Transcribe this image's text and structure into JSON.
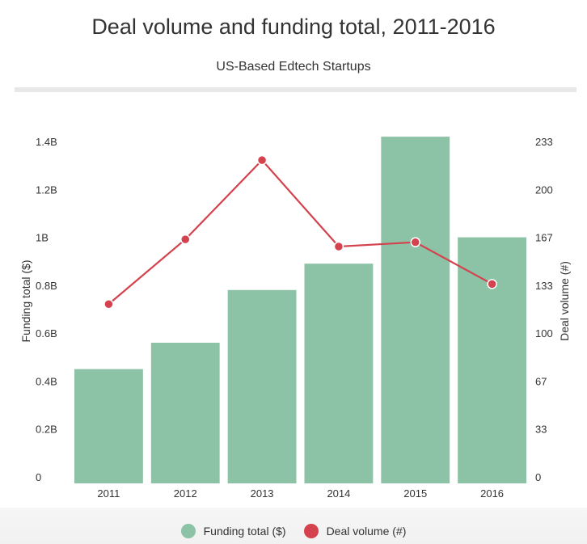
{
  "colors": {
    "funding": "#8cc3a6",
    "deals": "#d4424e"
  },
  "chart_data": {
    "type": "bar",
    "title": "Deal volume and funding total, 2011-2016",
    "subtitle": "US-Based Edtech Startups",
    "categories": [
      "2011",
      "2012",
      "2013",
      "2014",
      "2015",
      "2016"
    ],
    "series": [
      {
        "name": "Funding total ($)",
        "type": "bar",
        "axis": "left",
        "values": [
          0.45,
          0.56,
          0.78,
          0.89,
          1.42,
          1.0
        ]
      },
      {
        "name": "Deal volume (#)",
        "type": "line",
        "axis": "right",
        "values": [
          120,
          165,
          220,
          160,
          163,
          134
        ]
      }
    ],
    "ylabel_left": "Funding total ($)",
    "ylabel_right": "Deal volume (#)",
    "ylim_left": [
      0,
      1.4
    ],
    "ylim_right": [
      0,
      233
    ],
    "yticks_left": [
      "0",
      "0.2B",
      "0.4B",
      "0.6B",
      "0.8B",
      "1B",
      "1.2B",
      "1.4B"
    ],
    "yticks_right": [
      "0",
      "33",
      "67",
      "100",
      "133",
      "167",
      "200",
      "233"
    ],
    "grid": false,
    "legend_position": "bottom"
  }
}
